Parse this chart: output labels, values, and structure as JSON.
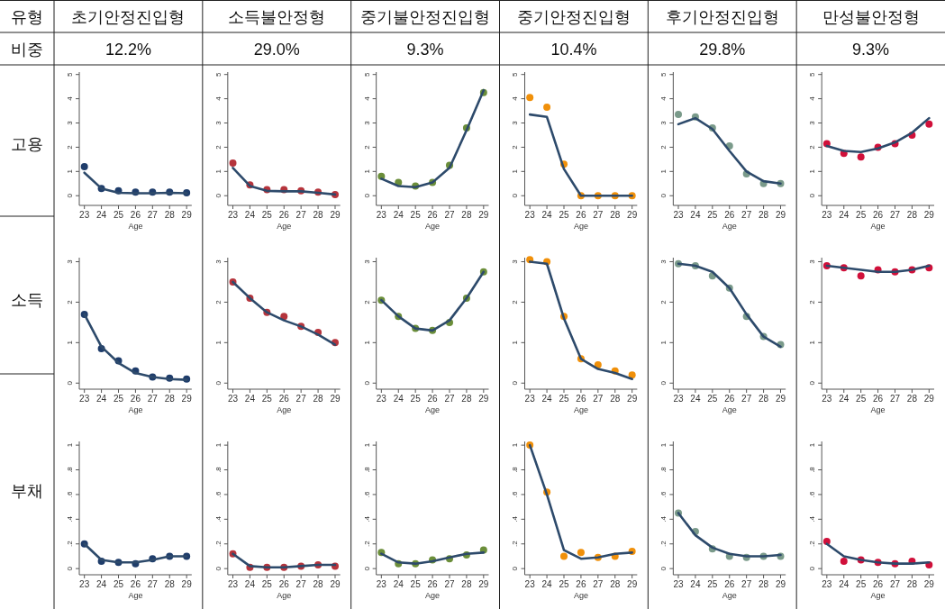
{
  "chart_data": [
    {
      "type": "other",
      "annotations": [
        "유형",
        "초기안정진입형",
        "소득불안정형",
        "중기불안정진입형",
        "중기안정진입형",
        "후기안정진입형",
        "만성불안정형",
        "비중",
        "12.2%",
        "29.0%",
        "9.3%",
        "10.4%",
        "29.8%",
        "9.3%",
        "고용",
        "소득",
        "부채"
      ]
    },
    {
      "type": "line",
      "x": [
        23,
        24,
        25,
        26,
        27,
        28,
        29
      ],
      "xticks": [
        23,
        24,
        25,
        26,
        27,
        28,
        29
      ],
      "xlim": [
        22.7,
        29.3
      ],
      "xlabel": "Age",
      "ylim": [
        -0.4,
        5.1
      ],
      "yticks": [
        0,
        1,
        2,
        3,
        4,
        5
      ],
      "series": [
        {
          "type": "scatter",
          "marker": "circle",
          "color": "#1f3d6b",
          "values": [
            1.2,
            0.3,
            0.2,
            0.15,
            0.15,
            0.15,
            0.12
          ]
        },
        {
          "type": "line",
          "line_style": "solid",
          "color": "#2d4a6b",
          "values": [
            0.95,
            0.3,
            0.12,
            0.1,
            0.1,
            0.12,
            0.1
          ]
        }
      ]
    },
    {
      "type": "line",
      "x": [
        23,
        24,
        25,
        26,
        27,
        28,
        29
      ],
      "xticks": [
        23,
        24,
        25,
        26,
        27,
        28,
        29
      ],
      "xlim": [
        22.7,
        29.3
      ],
      "xlabel": "Age",
      "ylim": [
        -0.4,
        5.1
      ],
      "yticks": [
        0,
        1,
        2,
        3,
        4,
        5
      ],
      "series": [
        {
          "type": "scatter",
          "marker": "circle",
          "color": "#b5343c",
          "values": [
            1.35,
            0.45,
            0.25,
            0.25,
            0.2,
            0.15,
            0.05
          ]
        },
        {
          "type": "line",
          "line_style": "solid",
          "color": "#2d4a6b",
          "values": [
            1.15,
            0.4,
            0.2,
            0.18,
            0.18,
            0.12,
            0.05
          ]
        }
      ]
    },
    {
      "type": "line",
      "x": [
        23,
        24,
        25,
        26,
        27,
        28,
        29
      ],
      "xticks": [
        23,
        24,
        25,
        26,
        27,
        28,
        29
      ],
      "xlim": [
        22.7,
        29.3
      ],
      "xlabel": "Age",
      "ylim": [
        -0.4,
        5.1
      ],
      "yticks": [
        0,
        1,
        2,
        3,
        4,
        5
      ],
      "series": [
        {
          "type": "scatter",
          "marker": "circle",
          "color": "#6b8e3a",
          "values": [
            0.8,
            0.55,
            0.4,
            0.55,
            1.25,
            2.8,
            4.25
          ]
        },
        {
          "type": "line",
          "line_style": "solid",
          "color": "#2d4a6b",
          "values": [
            0.7,
            0.4,
            0.35,
            0.55,
            1.15,
            2.7,
            4.35
          ]
        }
      ]
    },
    {
      "type": "line",
      "x": [
        23,
        24,
        25,
        26,
        27,
        28,
        29
      ],
      "xticks": [
        23,
        24,
        25,
        26,
        27,
        28,
        29
      ],
      "xlim": [
        22.7,
        29.3
      ],
      "xlabel": "Age",
      "ylim": [
        -0.4,
        5.1
      ],
      "yticks": [
        0,
        1,
        2,
        3,
        4,
        5
      ],
      "series": [
        {
          "type": "scatter",
          "marker": "circle",
          "color": "#f0900a",
          "values": [
            4.05,
            3.65,
            1.3,
            0,
            0,
            0,
            0
          ]
        },
        {
          "type": "line",
          "line_style": "solid",
          "color": "#2d4a6b",
          "values": [
            3.35,
            3.25,
            1.1,
            0,
            0,
            0,
            0
          ]
        }
      ]
    },
    {
      "type": "line",
      "x": [
        23,
        24,
        25,
        26,
        27,
        28,
        29
      ],
      "xticks": [
        23,
        24,
        25,
        26,
        27,
        28,
        29
      ],
      "xlim": [
        22.7,
        29.3
      ],
      "xlabel": "Age",
      "ylim": [
        -0.4,
        5.1
      ],
      "yticks": [
        0,
        1,
        2,
        3,
        4,
        5
      ],
      "series": [
        {
          "type": "scatter",
          "marker": "circle",
          "color": "#7a9a8a",
          "values": [
            3.35,
            3.25,
            2.8,
            2.05,
            0.9,
            0.5,
            0.5
          ]
        },
        {
          "type": "line",
          "line_style": "solid",
          "color": "#2d4a6b",
          "values": [
            2.95,
            3.2,
            2.75,
            1.85,
            1.0,
            0.6,
            0.5
          ]
        }
      ]
    },
    {
      "type": "line",
      "x": [
        23,
        24,
        25,
        26,
        27,
        28,
        29
      ],
      "xticks": [
        23,
        24,
        25,
        26,
        27,
        28,
        29
      ],
      "xlim": [
        22.7,
        29.3
      ],
      "xlabel": "Age",
      "ylim": [
        -0.4,
        5.1
      ],
      "yticks": [
        0,
        1,
        2,
        3,
        4,
        5
      ],
      "series": [
        {
          "type": "scatter",
          "marker": "circle",
          "color": "#d0103a",
          "values": [
            2.15,
            1.75,
            1.6,
            2.0,
            2.15,
            2.5,
            2.95
          ]
        },
        {
          "type": "line",
          "line_style": "solid",
          "color": "#2d4a6b",
          "values": [
            2.05,
            1.85,
            1.8,
            1.95,
            2.2,
            2.6,
            3.2
          ]
        }
      ]
    },
    {
      "type": "line",
      "x": [
        23,
        24,
        25,
        26,
        27,
        28,
        29
      ],
      "xticks": [
        23,
        24,
        25,
        26,
        27,
        28,
        29
      ],
      "xlim": [
        22.7,
        29.3
      ],
      "xlabel": "Age",
      "ylim": [
        -0.15,
        3.1
      ],
      "yticks": [
        0,
        1,
        2,
        3
      ],
      "series": [
        {
          "type": "scatter",
          "marker": "circle",
          "color": "#1f3d6b",
          "values": [
            1.7,
            0.85,
            0.55,
            0.3,
            0.15,
            0.12,
            0.1
          ]
        },
        {
          "type": "line",
          "line_style": "solid",
          "color": "#2d4a6b",
          "values": [
            1.7,
            0.9,
            0.5,
            0.25,
            0.15,
            0.1,
            0.08
          ]
        }
      ]
    },
    {
      "type": "line",
      "x": [
        23,
        24,
        25,
        26,
        27,
        28,
        29
      ],
      "xticks": [
        23,
        24,
        25,
        26,
        27,
        28,
        29
      ],
      "xlim": [
        22.7,
        29.3
      ],
      "xlabel": "Age",
      "ylim": [
        -0.15,
        3.1
      ],
      "yticks": [
        0,
        1,
        2,
        3
      ],
      "series": [
        {
          "type": "scatter",
          "marker": "circle",
          "color": "#b5343c",
          "values": [
            2.5,
            2.1,
            1.75,
            1.65,
            1.4,
            1.25,
            1.0
          ]
        },
        {
          "type": "line",
          "line_style": "solid",
          "color": "#2d4a6b",
          "values": [
            2.5,
            2.1,
            1.75,
            1.55,
            1.4,
            1.2,
            0.95
          ]
        }
      ]
    },
    {
      "type": "line",
      "x": [
        23,
        24,
        25,
        26,
        27,
        28,
        29
      ],
      "xticks": [
        23,
        24,
        25,
        26,
        27,
        28,
        29
      ],
      "xlim": [
        22.7,
        29.3
      ],
      "xlabel": "Age",
      "ylim": [
        -0.15,
        3.1
      ],
      "yticks": [
        0,
        1,
        2,
        3
      ],
      "series": [
        {
          "type": "scatter",
          "marker": "circle",
          "color": "#6b8e3a",
          "values": [
            2.05,
            1.65,
            1.35,
            1.3,
            1.5,
            2.1,
            2.75
          ]
        },
        {
          "type": "line",
          "line_style": "solid",
          "color": "#2d4a6b",
          "values": [
            2.05,
            1.65,
            1.35,
            1.3,
            1.55,
            2.1,
            2.75
          ]
        }
      ]
    },
    {
      "type": "line",
      "x": [
        23,
        24,
        25,
        26,
        27,
        28,
        29
      ],
      "xticks": [
        23,
        24,
        25,
        26,
        27,
        28,
        29
      ],
      "xlim": [
        22.7,
        29.3
      ],
      "xlabel": "Age",
      "ylim": [
        -0.15,
        3.1
      ],
      "yticks": [
        0,
        1,
        2,
        3
      ],
      "series": [
        {
          "type": "scatter",
          "marker": "circle",
          "color": "#f0900a",
          "values": [
            3.05,
            3.0,
            1.65,
            0.6,
            0.45,
            0.3,
            0.2
          ]
        },
        {
          "type": "line",
          "line_style": "solid",
          "color": "#2d4a6b",
          "values": [
            3.0,
            2.95,
            1.6,
            0.6,
            0.35,
            0.25,
            0.1
          ]
        }
      ]
    },
    {
      "type": "line",
      "x": [
        23,
        24,
        25,
        26,
        27,
        28,
        29
      ],
      "xticks": [
        23,
        24,
        25,
        26,
        27,
        28,
        29
      ],
      "xlim": [
        22.7,
        29.3
      ],
      "xlabel": "Age",
      "ylim": [
        -0.15,
        3.1
      ],
      "yticks": [
        0,
        1,
        2,
        3
      ],
      "series": [
        {
          "type": "scatter",
          "marker": "circle",
          "color": "#7a9a8a",
          "values": [
            2.95,
            2.9,
            2.65,
            2.35,
            1.65,
            1.15,
            0.95
          ]
        },
        {
          "type": "line",
          "line_style": "solid",
          "color": "#2d4a6b",
          "values": [
            2.95,
            2.9,
            2.75,
            2.35,
            1.7,
            1.15,
            0.9
          ]
        }
      ]
    },
    {
      "type": "line",
      "x": [
        23,
        24,
        25,
        26,
        27,
        28,
        29
      ],
      "xticks": [
        23,
        24,
        25,
        26,
        27,
        28,
        29
      ],
      "xlim": [
        22.7,
        29.3
      ],
      "xlabel": "Age",
      "ylim": [
        -0.15,
        3.1
      ],
      "yticks": [
        0,
        1,
        2,
        3
      ],
      "series": [
        {
          "type": "scatter",
          "marker": "circle",
          "color": "#d0103a",
          "values": [
            2.9,
            2.85,
            2.65,
            2.8,
            2.75,
            2.8,
            2.85
          ]
        },
        {
          "type": "line",
          "line_style": "solid",
          "color": "#2d4a6b",
          "values": [
            2.9,
            2.85,
            2.8,
            2.75,
            2.75,
            2.8,
            2.9
          ]
        }
      ]
    },
    {
      "type": "line",
      "x": [
        23,
        24,
        25,
        26,
        27,
        28,
        29
      ],
      "xticks": [
        23,
        24,
        25,
        26,
        27,
        28,
        29
      ],
      "xlim": [
        22.7,
        29.3
      ],
      "xlabel": "Age",
      "ylim": [
        -0.05,
        1.03
      ],
      "yticks": [
        0,
        {
          "value": 0.2,
          "label": ".2"
        },
        {
          "value": 0.4,
          "label": ".4"
        },
        {
          "value": 0.6,
          "label": ".6"
        },
        {
          "value": 0.8,
          "label": ".8"
        },
        1
      ],
      "series": [
        {
          "type": "scatter",
          "marker": "circle",
          "color": "#1f3d6b",
          "values": [
            0.2,
            0.06,
            0.05,
            0.04,
            0.08,
            0.1,
            0.1
          ]
        },
        {
          "type": "line",
          "line_style": "solid",
          "color": "#2d4a6b",
          "values": [
            0.2,
            0.07,
            0.05,
            0.05,
            0.07,
            0.1,
            0.1
          ]
        }
      ]
    },
    {
      "type": "line",
      "x": [
        23,
        24,
        25,
        26,
        27,
        28,
        29
      ],
      "xticks": [
        23,
        24,
        25,
        26,
        27,
        28,
        29
      ],
      "xlim": [
        22.7,
        29.3
      ],
      "xlabel": "Age",
      "ylim": [
        -0.05,
        1.03
      ],
      "yticks": [
        0,
        {
          "value": 0.2,
          "label": ".2"
        },
        {
          "value": 0.4,
          "label": ".4"
        },
        {
          "value": 0.6,
          "label": ".6"
        },
        {
          "value": 0.8,
          "label": ".8"
        },
        1
      ],
      "series": [
        {
          "type": "scatter",
          "marker": "circle",
          "color": "#b5343c",
          "values": [
            0.12,
            0.01,
            0.01,
            0.01,
            0.02,
            0.03,
            0.02
          ]
        },
        {
          "type": "line",
          "line_style": "solid",
          "color": "#2d4a6b",
          "values": [
            0.12,
            0.02,
            0.01,
            0.01,
            0.02,
            0.03,
            0.03
          ]
        }
      ]
    },
    {
      "type": "line",
      "x": [
        23,
        24,
        25,
        26,
        27,
        28,
        29
      ],
      "xticks": [
        23,
        24,
        25,
        26,
        27,
        28,
        29
      ],
      "xlim": [
        22.7,
        29.3
      ],
      "xlabel": "Age",
      "ylim": [
        -0.05,
        1.03
      ],
      "yticks": [
        0,
        {
          "value": 0.2,
          "label": ".2"
        },
        {
          "value": 0.4,
          "label": ".4"
        },
        {
          "value": 0.6,
          "label": ".6"
        },
        {
          "value": 0.8,
          "label": ".8"
        },
        1
      ],
      "series": [
        {
          "type": "scatter",
          "marker": "circle",
          "color": "#6b8e3a",
          "values": [
            0.13,
            0.04,
            0.04,
            0.07,
            0.08,
            0.11,
            0.15
          ]
        },
        {
          "type": "line",
          "line_style": "solid",
          "color": "#2d4a6b",
          "values": [
            0.12,
            0.05,
            0.04,
            0.06,
            0.09,
            0.12,
            0.13
          ]
        }
      ]
    },
    {
      "type": "line",
      "x": [
        23,
        24,
        25,
        26,
        27,
        28,
        29
      ],
      "xticks": [
        23,
        24,
        25,
        26,
        27,
        28,
        29
      ],
      "xlim": [
        22.7,
        29.3
      ],
      "xlabel": "Age",
      "ylim": [
        -0.05,
        1.03
      ],
      "yticks": [
        0,
        {
          "value": 0.2,
          "label": ".2"
        },
        {
          "value": 0.4,
          "label": ".4"
        },
        {
          "value": 0.6,
          "label": ".6"
        },
        {
          "value": 0.8,
          "label": ".8"
        },
        1
      ],
      "series": [
        {
          "type": "scatter",
          "marker": "circle",
          "color": "#f0900a",
          "values": [
            1.0,
            0.62,
            0.1,
            0.13,
            0.09,
            0.1,
            0.14
          ]
        },
        {
          "type": "line",
          "line_style": "solid",
          "color": "#2d4a6b",
          "values": [
            1.0,
            0.6,
            0.15,
            0.08,
            0.09,
            0.12,
            0.13
          ]
        }
      ]
    },
    {
      "type": "line",
      "x": [
        23,
        24,
        25,
        26,
        27,
        28,
        29
      ],
      "xticks": [
        23,
        24,
        25,
        26,
        27,
        28,
        29
      ],
      "xlim": [
        22.7,
        29.3
      ],
      "xlabel": "Age",
      "ylim": [
        -0.05,
        1.03
      ],
      "yticks": [
        0,
        {
          "value": 0.2,
          "label": ".2"
        },
        {
          "value": 0.4,
          "label": ".4"
        },
        {
          "value": 0.6,
          "label": ".6"
        },
        {
          "value": 0.8,
          "label": ".8"
        },
        1
      ],
      "series": [
        {
          "type": "scatter",
          "marker": "circle",
          "color": "#7a9a8a",
          "values": [
            0.45,
            0.3,
            0.16,
            0.1,
            0.09,
            0.1,
            0.1
          ]
        },
        {
          "type": "line",
          "line_style": "solid",
          "color": "#2d4a6b",
          "values": [
            0.45,
            0.27,
            0.17,
            0.12,
            0.1,
            0.1,
            0.11
          ]
        }
      ]
    },
    {
      "type": "line",
      "x": [
        23,
        24,
        25,
        26,
        27,
        28,
        29
      ],
      "xticks": [
        23,
        24,
        25,
        26,
        27,
        28,
        29
      ],
      "xlim": [
        22.7,
        29.3
      ],
      "xlabel": "Age",
      "ylim": [
        -0.05,
        1.03
      ],
      "yticks": [
        0,
        {
          "value": 0.2,
          "label": ".2"
        },
        {
          "value": 0.4,
          "label": ".4"
        },
        {
          "value": 0.6,
          "label": ".6"
        },
        {
          "value": 0.8,
          "label": ".8"
        },
        1
      ],
      "series": [
        {
          "type": "scatter",
          "marker": "circle",
          "color": "#d0103a",
          "values": [
            0.22,
            0.06,
            0.07,
            0.05,
            0.04,
            0.06,
            0.03
          ]
        },
        {
          "type": "line",
          "line_style": "solid",
          "color": "#2d4a6b",
          "values": [
            0.2,
            0.1,
            0.07,
            0.05,
            0.04,
            0.04,
            0.05
          ]
        }
      ]
    }
  ]
}
